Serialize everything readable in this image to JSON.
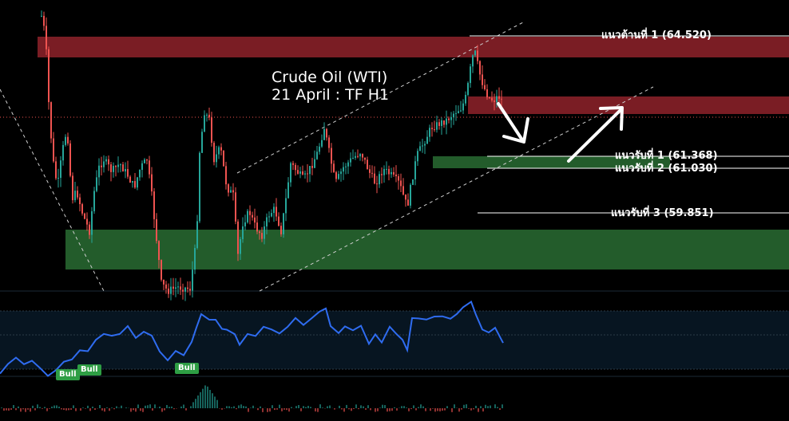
{
  "chart_data": {
    "type": "candlestick",
    "title": "Crude Oil (WTI)",
    "subtitle": "21 April : TF H1",
    "levels": [
      {
        "label": "แนวต้านที่ 1 (64.520)",
        "value": 64.52,
        "kind": "resistance"
      },
      {
        "label": "แนวรับที่ 1 (61.368)",
        "value": 61.368,
        "kind": "support"
      },
      {
        "label": "แนวรับที่ 2 (61.030)",
        "value": 61.03,
        "kind": "support"
      },
      {
        "label": "แนวรับที่ 3 (59.851)",
        "value": 59.851,
        "kind": "support"
      }
    ],
    "indicator_badges": [
      "Bull",
      "Bull",
      "Bull"
    ],
    "colors": {
      "up": "#26a69a",
      "down": "#ef5350",
      "resistance_zone": "#7a1d24",
      "support_zone": "#235c2b",
      "rsi_line": "#2f6cf0",
      "badge": "#2e9e44"
    },
    "annotations": [
      "down arrow (pullback)",
      "up arrow (rebound)",
      "ascending channel"
    ]
  }
}
